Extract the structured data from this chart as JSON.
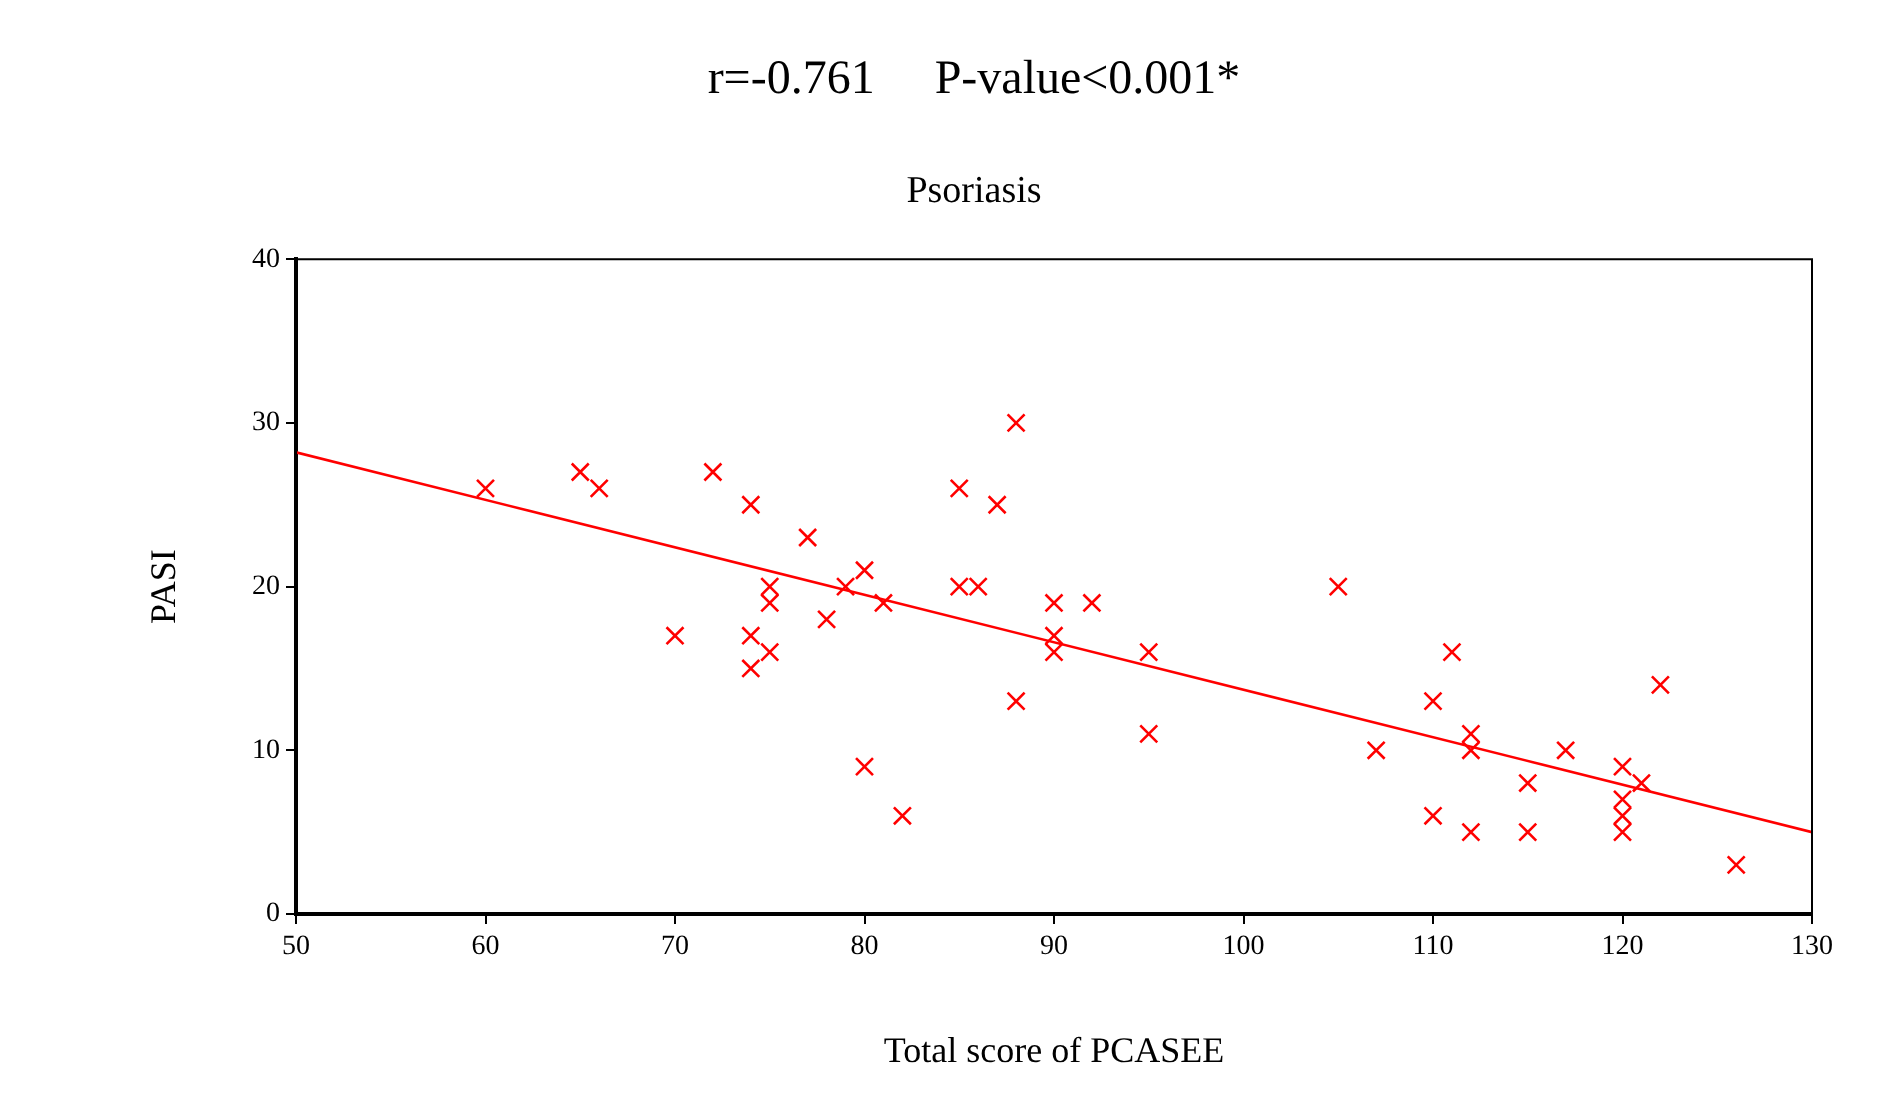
{
  "chart_data": {
    "type": "scatter",
    "title": "r=-0.761     P-value<0.001*",
    "subtitle": "Psoriasis",
    "xlabel": "Total score of PCASEE",
    "ylabel": "PASI",
    "xlim": [
      50,
      130
    ],
    "xticks": [
      50,
      60,
      70,
      80,
      90,
      100,
      110,
      120,
      130
    ],
    "ylim": [
      0,
      40
    ],
    "yticks": [
      0,
      10,
      20,
      30,
      40
    ],
    "grid": false,
    "legend": false,
    "series": [
      {
        "color": "#ff0000",
        "marker": "cross",
        "x": [
          60,
          65,
          66,
          70,
          72,
          74,
          74,
          74,
          75,
          75,
          75,
          77,
          78,
          79,
          80,
          80,
          81,
          82,
          85,
          85,
          86,
          87,
          88,
          88,
          90,
          90,
          90,
          92,
          95,
          95,
          105,
          107,
          110,
          110,
          111,
          112,
          112,
          112,
          115,
          115,
          117,
          120,
          120,
          120,
          120,
          121,
          122,
          126
        ],
        "values": [
          26,
          27,
          26,
          17,
          27,
          25,
          17,
          15,
          20,
          19,
          16,
          23,
          18,
          20,
          21,
          9,
          19,
          6,
          26,
          20,
          20,
          25,
          30,
          13,
          19,
          17,
          16,
          19,
          16,
          11,
          20,
          10,
          13,
          6,
          16,
          11,
          10,
          5,
          8,
          5,
          10,
          9,
          7,
          6,
          5,
          8,
          14,
          3
        ]
      },
      {
        "type": "line",
        "color": "#ff0000",
        "marker": "none",
        "x": [
          50,
          130
        ],
        "values": [
          28.2,
          5
        ]
      }
    ]
  }
}
